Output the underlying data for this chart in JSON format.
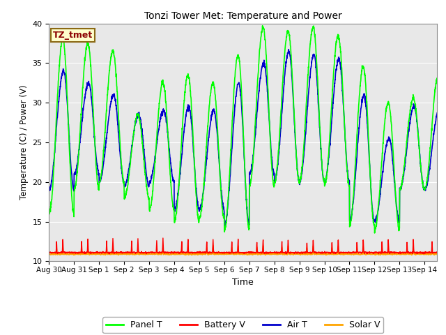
{
  "title": "Tonzi Tower Met: Temperature and Power",
  "xlabel": "Time",
  "ylabel": "Temperature (C) / Power (V)",
  "ylim": [
    10,
    40
  ],
  "annotation_text": "TZ_tmet",
  "annotation_color": "#8B0000",
  "annotation_bg": "#FFFFCC",
  "annotation_border": "#8B6914",
  "plot_bg_color": "#E8E8E8",
  "fig_bg_color": "#FFFFFF",
  "grid_color": "#FFFFFF",
  "series": {
    "panel_t": {
      "color": "#00FF00",
      "label": "Panel T",
      "lw": 1.2
    },
    "battery_v": {
      "color": "#FF0000",
      "label": "Battery V",
      "lw": 1.0
    },
    "air_t": {
      "color": "#0000CC",
      "label": "Air T",
      "lw": 1.2
    },
    "solar_v": {
      "color": "#FFA500",
      "label": "Solar V",
      "lw": 1.0
    }
  },
  "xtick_labels": [
    "Aug 30",
    "Aug 31",
    "Sep 1",
    "Sep 2",
    "Sep 3",
    "Sep 4",
    "Sep 5",
    "Sep 6",
    "Sep 7",
    "Sep 8",
    "Sep 9",
    "Sep 10",
    "Sep 11",
    "Sep 12",
    "Sep 13",
    "Sep 14"
  ],
  "xtick_positions": [
    0,
    1,
    2,
    3,
    4,
    5,
    6,
    7,
    8,
    9,
    10,
    11,
    12,
    13,
    14,
    15
  ],
  "n_days": 15.5,
  "panel_peaks": [
    38.0,
    37.5,
    36.5,
    28.5,
    32.5,
    33.5,
    32.5,
    36.0,
    39.5,
    39.0,
    39.5,
    38.5,
    34.5,
    30.0,
    30.5,
    33.5
  ],
  "panel_troughs": [
    16.0,
    19.0,
    20.0,
    18.0,
    16.5,
    15.0,
    15.5,
    14.0,
    19.5,
    20.0,
    20.0,
    19.5,
    14.5,
    14.0,
    19.0,
    19.0
  ],
  "air_peaks": [
    34.0,
    32.5,
    31.0,
    28.5,
    29.0,
    29.5,
    29.0,
    32.5,
    35.0,
    36.5,
    36.0,
    35.5,
    31.0,
    25.5,
    29.5,
    29.0
  ],
  "air_troughs": [
    19.0,
    21.0,
    20.0,
    19.5,
    20.0,
    16.5,
    16.5,
    14.5,
    21.0,
    20.0,
    20.0,
    20.0,
    15.0,
    15.0,
    19.0,
    19.0
  ]
}
